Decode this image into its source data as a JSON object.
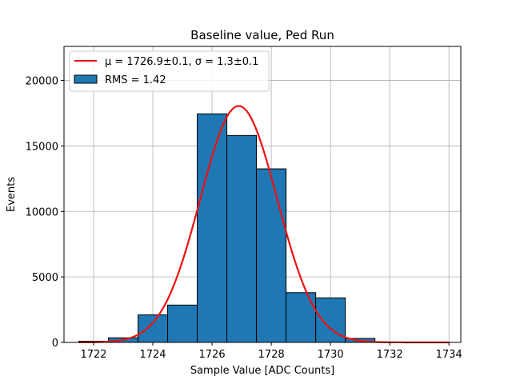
{
  "chart_data": {
    "type": "bar",
    "title": "Baseline value, Ped Run",
    "xlabel": "Sample Value [ADC Counts]",
    "ylabel": "Events",
    "xlim": [
      1721.0,
      1734.4
    ],
    "ylim": [
      0,
      22600
    ],
    "x_ticks": [
      1722,
      1724,
      1726,
      1728,
      1730,
      1732,
      1734
    ],
    "y_ticks": [
      0,
      5000,
      10000,
      15000,
      20000
    ],
    "grid": true,
    "legend_position": "top-left",
    "bin_edges": [
      1721.5,
      1722.5,
      1723.5,
      1724.5,
      1725.5,
      1726.5,
      1727.5,
      1728.5,
      1729.5,
      1730.5,
      1731.5,
      1732.5,
      1733.5
    ],
    "bin_counts": [
      90,
      350,
      2100,
      2850,
      17450,
      15800,
      13250,
      3800,
      3400,
      300,
      0,
      0
    ],
    "histogram_color": "#1f77b4",
    "histogram_label": "RMS = 1.42",
    "fit": {
      "label": "μ = 1726.9±0.1, σ = 1.3±0.1",
      "mu": 1726.9,
      "sigma": 1.3,
      "amplitude": 18050,
      "x_range": [
        1721.5,
        1734.0
      ],
      "color": "#ee1111"
    }
  }
}
